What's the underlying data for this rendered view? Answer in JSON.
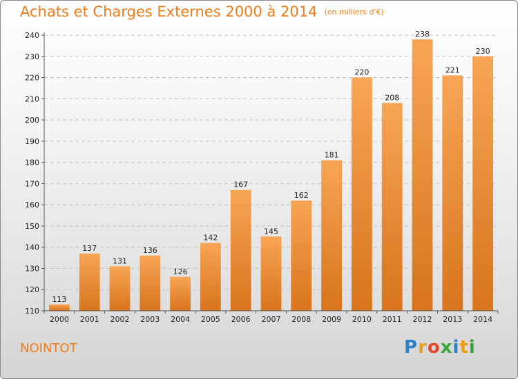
{
  "title": "Achats et Charges Externes 2000 à 2014",
  "subtitle": "(en milliers d'€)",
  "commune": "NOINTOT",
  "logo": {
    "letters": [
      {
        "ch": "P",
        "color": "#2f7fc6"
      },
      {
        "ch": "r",
        "color": "#e8a01a"
      },
      {
        "ch": "o",
        "color": "#e04a2a"
      },
      {
        "ch": "x",
        "color": "#3aa53a"
      },
      {
        "ch": "i",
        "color": "#2f7fc6"
      },
      {
        "ch": "t",
        "color": "#e8a01a"
      },
      {
        "ch": "i",
        "color": "#3aa53a"
      }
    ]
  },
  "chart_data": {
    "type": "bar",
    "categories": [
      "2000",
      "2001",
      "2002",
      "2003",
      "2004",
      "2005",
      "2006",
      "2007",
      "2008",
      "2009",
      "2010",
      "2011",
      "2012",
      "2013",
      "2014"
    ],
    "values": [
      113,
      137,
      131,
      136,
      126,
      142,
      167,
      145,
      162,
      181,
      220,
      208,
      238,
      221,
      230
    ],
    "ylim": [
      110,
      240
    ],
    "yticks": [
      110,
      120,
      130,
      140,
      150,
      160,
      170,
      180,
      190,
      200,
      210,
      220,
      230,
      240
    ],
    "grid": true,
    "bar_color_top": "#f7a555",
    "bar_color_bottom": "#d8741c",
    "accent": "#ef7d1a"
  }
}
